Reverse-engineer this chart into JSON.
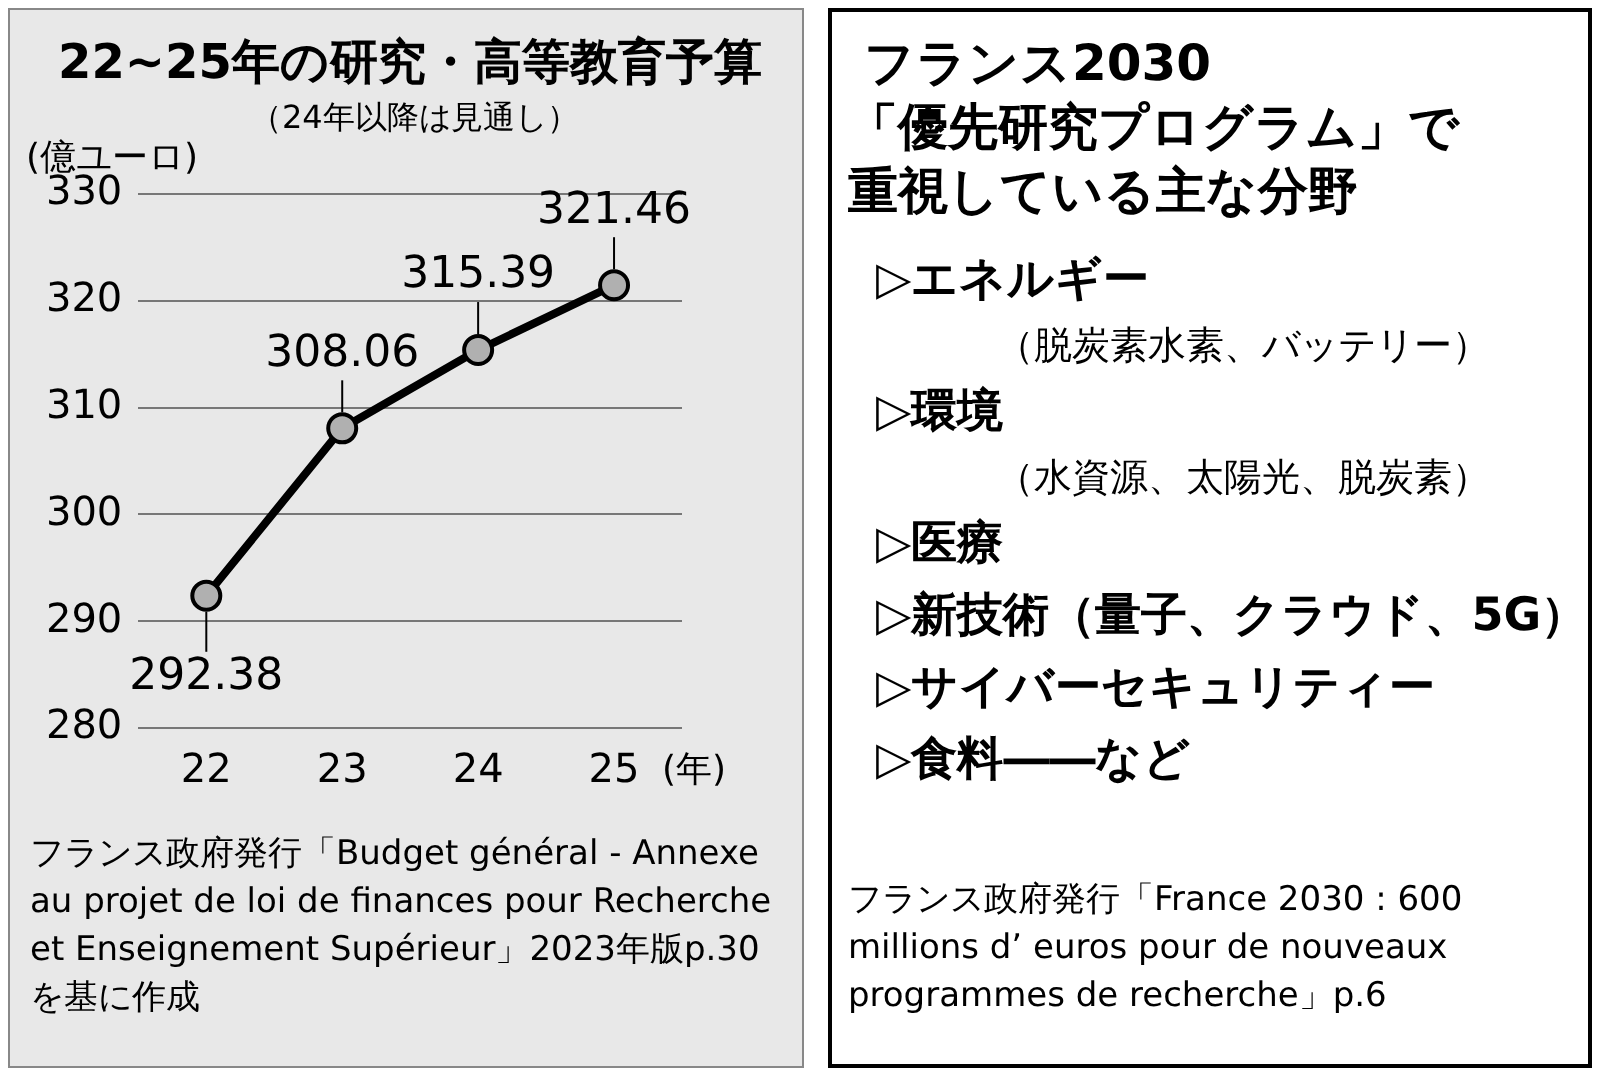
{
  "chart_data": [
    {
      "type": "line",
      "title": "22~25年の研究・高等教育予算",
      "subtitle": "（24年以降は見通し）",
      "ylabel": "(億ユーロ)",
      "xlabel": "(年)",
      "categories": [
        "22",
        "23",
        "24",
        "25"
      ],
      "values": [
        292.38,
        308.06,
        315.39,
        321.46
      ],
      "color": "#000000",
      "marker": "circle",
      "line_style": "solid",
      "data_labels": true,
      "ylim": [
        280,
        330
      ],
      "yticks": [
        280,
        290,
        300,
        310,
        320,
        330
      ],
      "grid": "y",
      "annotations": [
        "フランス政府発行「Budget général - Annexe au projet de loi de finances pour Recherche et Enseignement Supérieur」2023年版p.30を基に作成"
      ]
    },
    {
      "type": "other",
      "title": "フランス2030",
      "subtitle": "「優先研究プログラム」で重視している主な分野",
      "annotations": [
        "▷エネルギー",
        "（脱炭素水素、バッテリー）",
        "▷環境",
        "（水資源、太陽光、脱炭素）",
        "▷医療",
        "▷新技術（量子、クラウド、5G）",
        "▷サイバーセキュリティー",
        "▷食料――など",
        "フランス政府発行「France 2030 : 600 millions d’ euros pour de nouveaux programmes de recherche」p.6"
      ]
    }
  ]
}
